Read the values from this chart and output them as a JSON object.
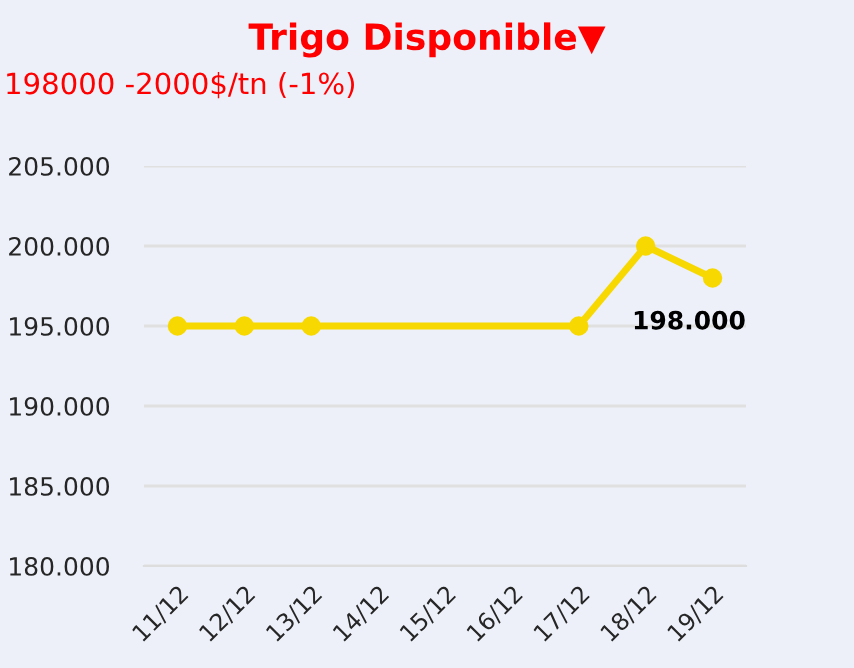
{
  "chart_data": {
    "type": "line",
    "title": "Trigo Disponible▼",
    "subtitle": "198000 -2000$/tn (-1%)",
    "categories": [
      "11/12",
      "12/12",
      "13/12",
      "14/12",
      "15/12",
      "16/12",
      "17/12",
      "18/12",
      "19/12"
    ],
    "series": [
      {
        "color": "#f7d800",
        "values": [
          195000,
          195000,
          195000,
          null,
          null,
          null,
          195000,
          200000,
          198000
        ],
        "value_labels": [
          null,
          null,
          null,
          null,
          null,
          null,
          null,
          null,
          "198.000"
        ]
      }
    ],
    "ylim": [
      180000,
      205000
    ],
    "yticks": [
      {
        "value": 180000,
        "label": "180.000"
      },
      {
        "value": 185000,
        "label": "185.000"
      },
      {
        "value": 190000,
        "label": "190.000"
      },
      {
        "value": 195000,
        "label": "195.000"
      },
      {
        "value": 200000,
        "label": "200.000"
      },
      {
        "value": 205000,
        "label": "205.000"
      }
    ],
    "grid": "y",
    "marker": "circle",
    "line_style": "solid"
  }
}
